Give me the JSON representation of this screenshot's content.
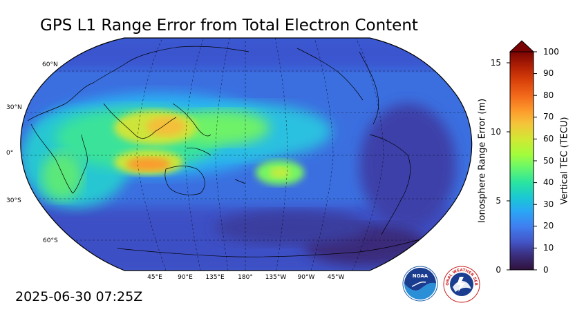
{
  "title": "GPS L1 Range Error from Total Electron Content",
  "timestamp": "2025-06-30 07:25Z",
  "lat_labels": [
    "60°N",
    "30°N",
    "0°",
    "30°S",
    "60°S"
  ],
  "lon_labels": [
    "45°E",
    "90°E",
    "135°E",
    "180°",
    "135°W",
    "90°W",
    "45°W"
  ],
  "colorbar": {
    "left_label": "Ionosphere Range Error (m)",
    "right_label": "Vertical TEC (TECU)",
    "left_ticks": [
      "15",
      "10",
      "5",
      "0"
    ],
    "right_ticks": [
      "100",
      "90",
      "80",
      "70",
      "60",
      "50",
      "40",
      "30",
      "20",
      "10",
      "0"
    ],
    "extend": "max",
    "colors": [
      "#30123b",
      "#3b2f80",
      "#4356c8",
      "#3f7ff0",
      "#2aa7f5",
      "#1ac7d5",
      "#29e4a0",
      "#68f76a",
      "#a4fc3b",
      "#d1e834",
      "#f5c43a",
      "#fd9a2b",
      "#f2681a",
      "#d8400a",
      "#b22104",
      "#7a0403"
    ]
  },
  "logos": {
    "noaa_text": "NOAA",
    "nws_text": "NATIONAL WEATHER SERVICE"
  }
}
